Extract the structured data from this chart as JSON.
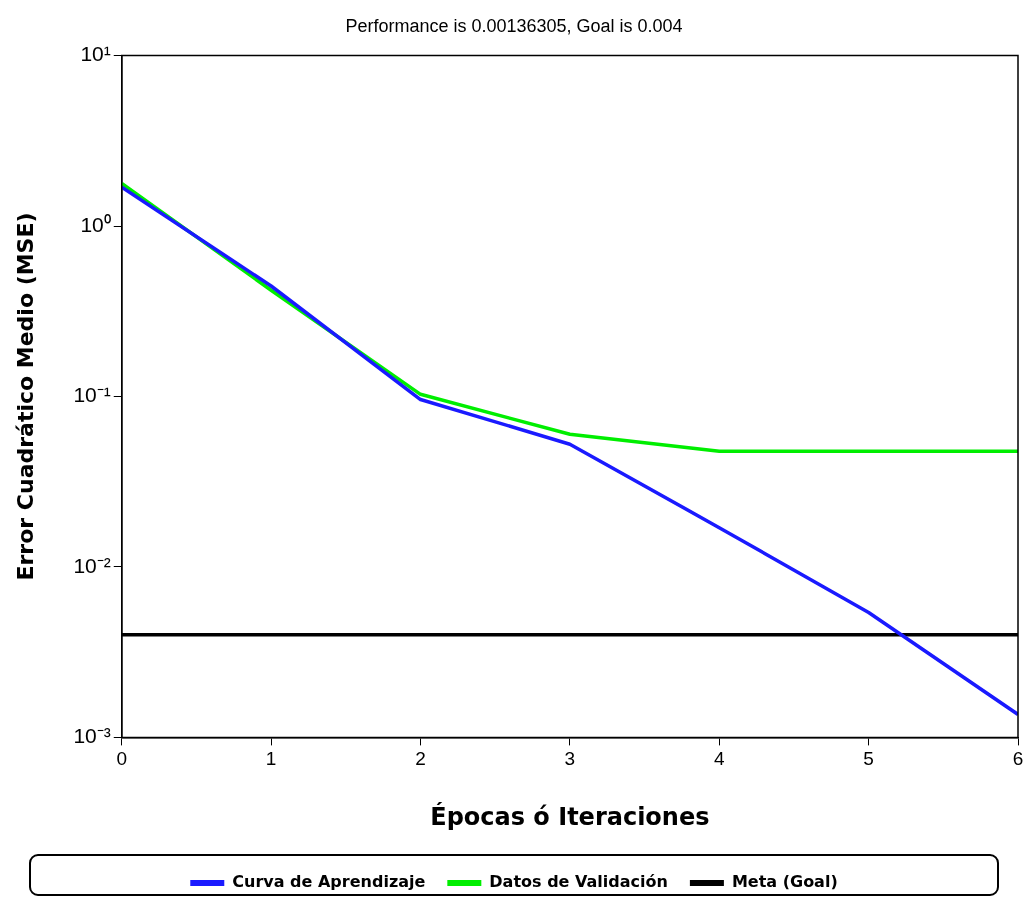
{
  "chart_data": {
    "type": "line",
    "title": "Performance is 0.00136305, Goal is 0.004",
    "xlabel": "Épocas ó Iteraciones",
    "ylabel": "Error Cuadrático Medio (MSE)",
    "x": [
      0,
      1,
      2,
      3,
      4,
      5,
      6
    ],
    "series": [
      {
        "name": "Curva de Aprendizaje",
        "color": "#1a1aff",
        "values": [
          1.69,
          0.445,
          0.096,
          0.0525,
          0.017,
          0.0054,
          0.00136305
        ]
      },
      {
        "name": "Datos de Validación",
        "color": "#00ee00",
        "values": [
          1.78,
          0.42,
          0.103,
          0.06,
          0.0477,
          0.0477,
          0.0477
        ]
      }
    ],
    "ref_lines": [
      {
        "axis": "y",
        "value": 0.004,
        "label": "Meta (Goal)",
        "color": "#000000"
      }
    ],
    "log": "y",
    "xlim": [
      0,
      6
    ],
    "xticks": [
      0,
      1,
      2,
      3,
      4,
      5,
      6
    ],
    "ylim": [
      0.001,
      10
    ],
    "yticks": [
      {
        "value": 0.001,
        "label": "10⁻³"
      },
      {
        "value": 0.01,
        "label": "10⁻²"
      },
      {
        "value": 0.1,
        "label": "10⁻¹"
      },
      {
        "value": 1,
        "label": "10⁰"
      },
      {
        "value": 10,
        "label": "10¹"
      }
    ],
    "grid": false,
    "legend": "bottom",
    "marker": "none",
    "line_style": "solid"
  }
}
